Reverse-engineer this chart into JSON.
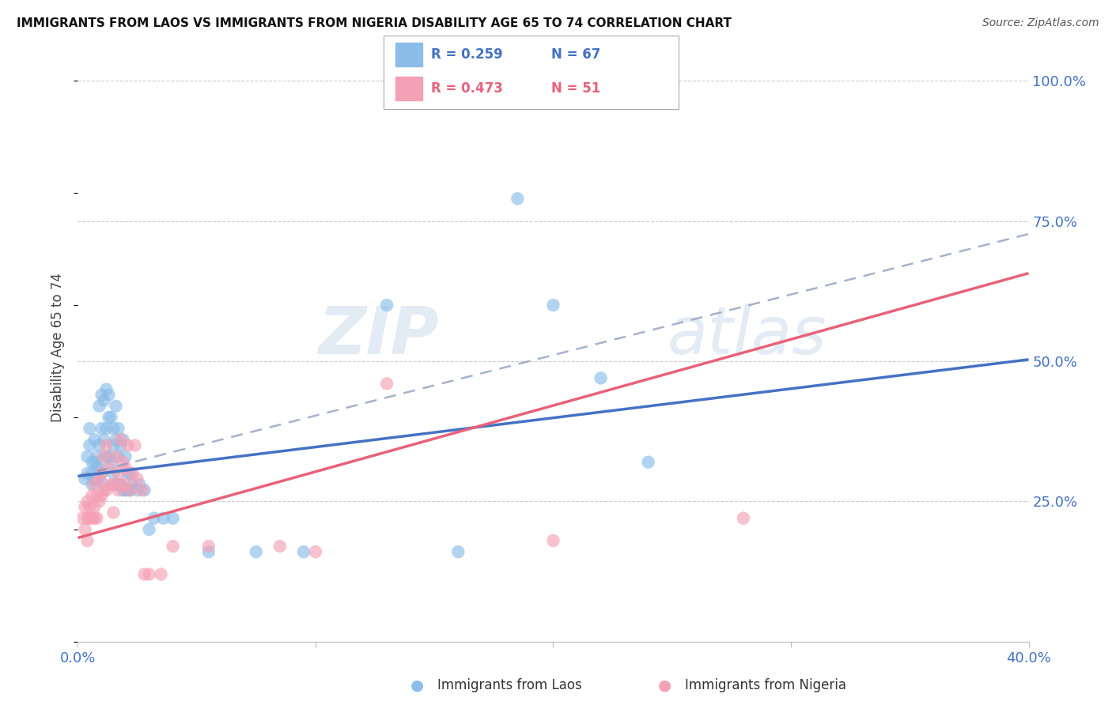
{
  "title": "IMMIGRANTS FROM LAOS VS IMMIGRANTS FROM NIGERIA DISABILITY AGE 65 TO 74 CORRELATION CHART",
  "source": "Source: ZipAtlas.com",
  "ylabel": "Disability Age 65 to 74",
  "x_min": 0.0,
  "x_max": 0.4,
  "y_min": 0.0,
  "y_max": 1.05,
  "y_ticks": [
    0.0,
    0.25,
    0.5,
    0.75,
    1.0
  ],
  "y_tick_labels": [
    "",
    "25.0%",
    "50.0%",
    "75.0%",
    "100.0%"
  ],
  "x_ticks": [
    0.0,
    0.1,
    0.2,
    0.3,
    0.4
  ],
  "x_tick_labels": [
    "0.0%",
    "",
    "",
    "",
    "40.0%"
  ],
  "color_laos": "#8BBDE8",
  "color_nigeria": "#F4A0B5",
  "color_laos_line": "#4472C4",
  "color_nigeria_line": "#E8627A",
  "color_dashed": "#8899BB",
  "color_axis_labels": "#4472C4",
  "R_laos": 0.259,
  "N_laos": 67,
  "R_nigeria": 0.473,
  "N_nigeria": 51,
  "laos_intercept": 0.295,
  "laos_slope": 0.52,
  "nigeria_intercept": 0.185,
  "nigeria_slope": 1.18,
  "dashed_intercept": 0.295,
  "dashed_slope": 1.08,
  "laos_x": [
    0.003,
    0.004,
    0.004,
    0.005,
    0.005,
    0.006,
    0.006,
    0.006,
    0.007,
    0.007,
    0.007,
    0.008,
    0.008,
    0.008,
    0.009,
    0.009,
    0.009,
    0.01,
    0.01,
    0.01,
    0.011,
    0.011,
    0.011,
    0.012,
    0.012,
    0.012,
    0.013,
    0.013,
    0.013,
    0.014,
    0.014,
    0.015,
    0.015,
    0.015,
    0.016,
    0.016,
    0.016,
    0.017,
    0.017,
    0.017,
    0.018,
    0.018,
    0.019,
    0.019,
    0.02,
    0.02,
    0.021,
    0.021,
    0.022,
    0.022,
    0.023,
    0.025,
    0.026,
    0.028,
    0.03,
    0.032,
    0.036,
    0.04,
    0.055,
    0.075,
    0.095,
    0.13,
    0.16,
    0.185,
    0.2,
    0.22,
    0.24
  ],
  "laos_y": [
    0.29,
    0.33,
    0.3,
    0.35,
    0.38,
    0.32,
    0.3,
    0.28,
    0.36,
    0.32,
    0.29,
    0.33,
    0.31,
    0.29,
    0.42,
    0.35,
    0.31,
    0.44,
    0.38,
    0.3,
    0.43,
    0.36,
    0.28,
    0.45,
    0.38,
    0.33,
    0.44,
    0.4,
    0.33,
    0.4,
    0.32,
    0.38,
    0.35,
    0.3,
    0.42,
    0.36,
    0.28,
    0.38,
    0.33,
    0.28,
    0.35,
    0.28,
    0.36,
    0.27,
    0.33,
    0.27,
    0.3,
    0.27,
    0.3,
    0.27,
    0.28,
    0.27,
    0.28,
    0.27,
    0.2,
    0.22,
    0.22,
    0.22,
    0.16,
    0.16,
    0.16,
    0.6,
    0.16,
    0.79,
    0.6,
    0.47,
    0.32
  ],
  "nigeria_x": [
    0.002,
    0.003,
    0.003,
    0.004,
    0.004,
    0.004,
    0.005,
    0.005,
    0.006,
    0.006,
    0.007,
    0.007,
    0.007,
    0.008,
    0.008,
    0.009,
    0.009,
    0.01,
    0.01,
    0.011,
    0.011,
    0.012,
    0.012,
    0.013,
    0.014,
    0.015,
    0.015,
    0.016,
    0.017,
    0.017,
    0.018,
    0.018,
    0.019,
    0.02,
    0.02,
    0.021,
    0.022,
    0.023,
    0.024,
    0.025,
    0.027,
    0.028,
    0.03,
    0.035,
    0.04,
    0.055,
    0.085,
    0.1,
    0.13,
    0.2,
    0.28
  ],
  "nigeria_y": [
    0.22,
    0.2,
    0.24,
    0.22,
    0.18,
    0.25,
    0.24,
    0.22,
    0.22,
    0.26,
    0.24,
    0.22,
    0.28,
    0.26,
    0.22,
    0.29,
    0.25,
    0.3,
    0.26,
    0.33,
    0.27,
    0.35,
    0.27,
    0.31,
    0.28,
    0.28,
    0.23,
    0.33,
    0.3,
    0.27,
    0.36,
    0.28,
    0.32,
    0.31,
    0.28,
    0.35,
    0.27,
    0.3,
    0.35,
    0.29,
    0.27,
    0.12,
    0.12,
    0.12,
    0.17,
    0.17,
    0.17,
    0.16,
    0.46,
    0.18,
    0.22
  ],
  "watermark_line1": "ZIP",
  "watermark_line2": "atlas",
  "background_color": "#FFFFFF",
  "grid_color": "#CCCCCC"
}
